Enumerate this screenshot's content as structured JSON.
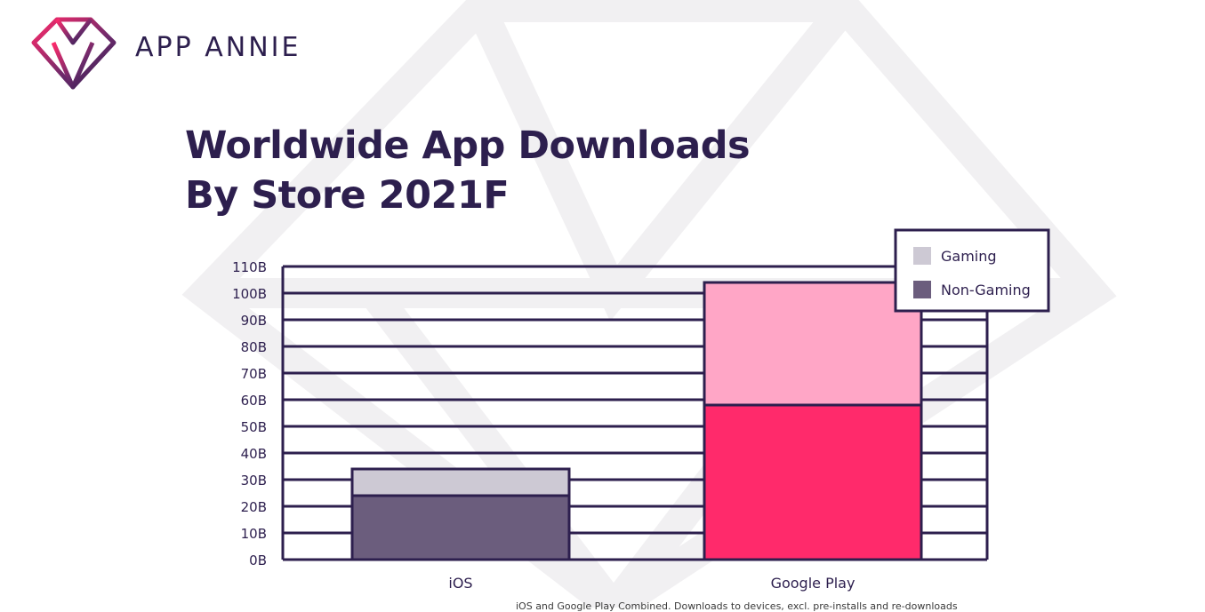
{
  "brand": {
    "name": "APP ANNIE",
    "logo_icon": "diamond-logo-icon"
  },
  "title_lines": [
    "Worldwide App Downloads",
    "By Store 2021F"
  ],
  "colors": {
    "ink": "#2d1f4e",
    "ios_gaming": "#cdc9d4",
    "ios_non_gaming": "#6b5d7d",
    "gp_gaming": "#ffa6c6",
    "gp_non_gaming": "#ff2a6b",
    "legend_gaming": "#cdc9d4",
    "legend_non_gaming": "#6b5d7d"
  },
  "chart_data": {
    "type": "bar",
    "stacked": true,
    "title": "Worldwide App Downloads By Store 2021F",
    "categories": [
      "iOS",
      "Google Play"
    ],
    "series": [
      {
        "name": "Non-Gaming",
        "values": [
          24,
          58
        ]
      },
      {
        "name": "Gaming",
        "values": [
          10,
          46
        ]
      }
    ],
    "ylim": [
      0,
      110
    ],
    "y_ticks": [
      0,
      10,
      20,
      30,
      40,
      50,
      60,
      70,
      80,
      90,
      100,
      110
    ],
    "y_tick_labels": [
      "0B",
      "10B",
      "20B",
      "30B",
      "40B",
      "50B",
      "60B",
      "70B",
      "80B",
      "90B",
      "100B",
      "110B"
    ],
    "grid": true,
    "legend": {
      "placement": "top-right",
      "entries": [
        "Gaming",
        "Non-Gaming"
      ]
    }
  },
  "footnote": "iOS and Google Play Combined. Downloads to devices, excl. pre-installs and re-downloads"
}
